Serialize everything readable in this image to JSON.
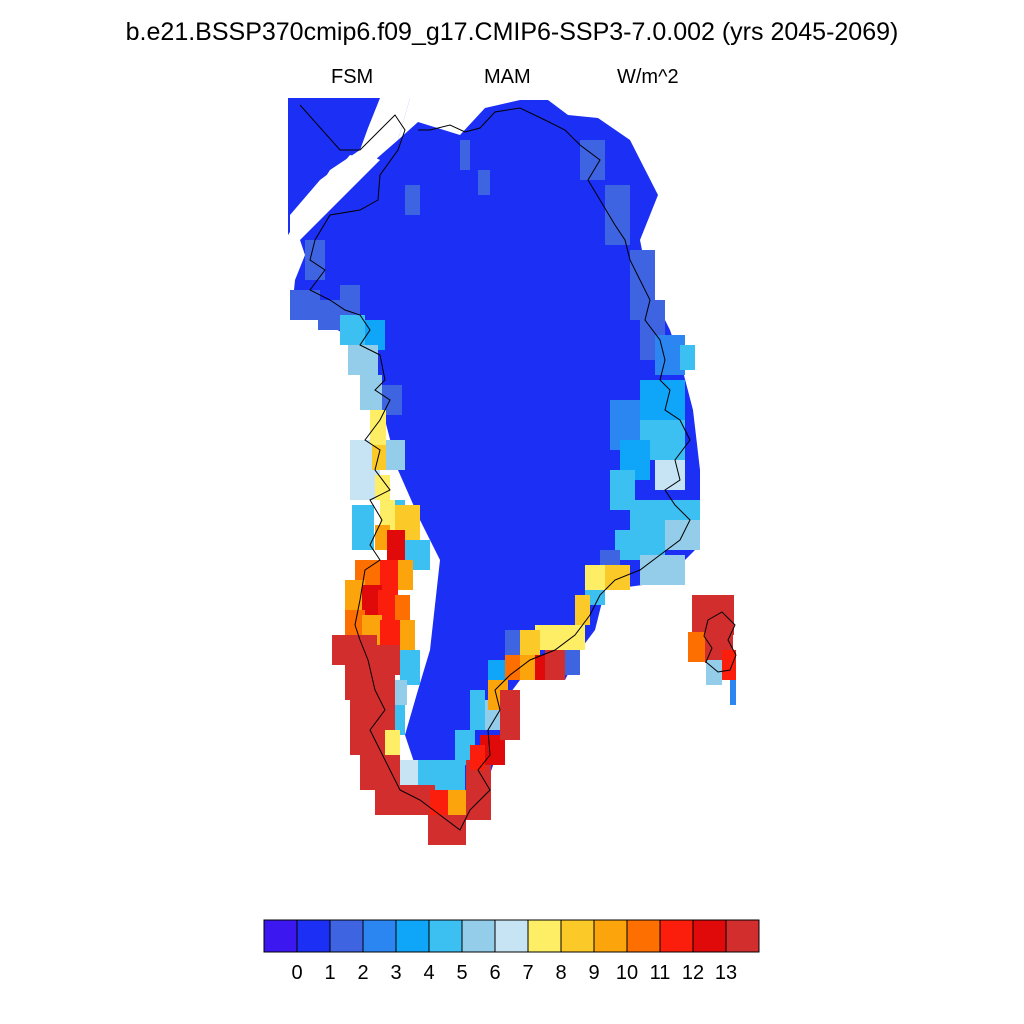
{
  "title": "b.e21.BSSP370cmip6.f09_g17.CMIP6-SSP3-7.0.002 (yrs 2045-2069)",
  "subtitle_left": "FSM",
  "subtitle_center": "MAM",
  "subtitle_right": "W/m^2",
  "colorbar": {
    "colors": [
      "#3d17f0",
      "#1b2ff5",
      "#3f64e2",
      "#2c86f2",
      "#0fa5f9",
      "#3cc0f2",
      "#94cdea",
      "#c7e4f4",
      "#fdee66",
      "#fbc928",
      "#fca40c",
      "#fc6f00",
      "#fc1e0c",
      "#e00a0a",
      "#d22e2e"
    ],
    "labels": [
      "0",
      "1",
      "2",
      "3",
      "4",
      "5",
      "6",
      "7",
      "8",
      "9",
      "10",
      "11",
      "12",
      "13"
    ]
  }
}
